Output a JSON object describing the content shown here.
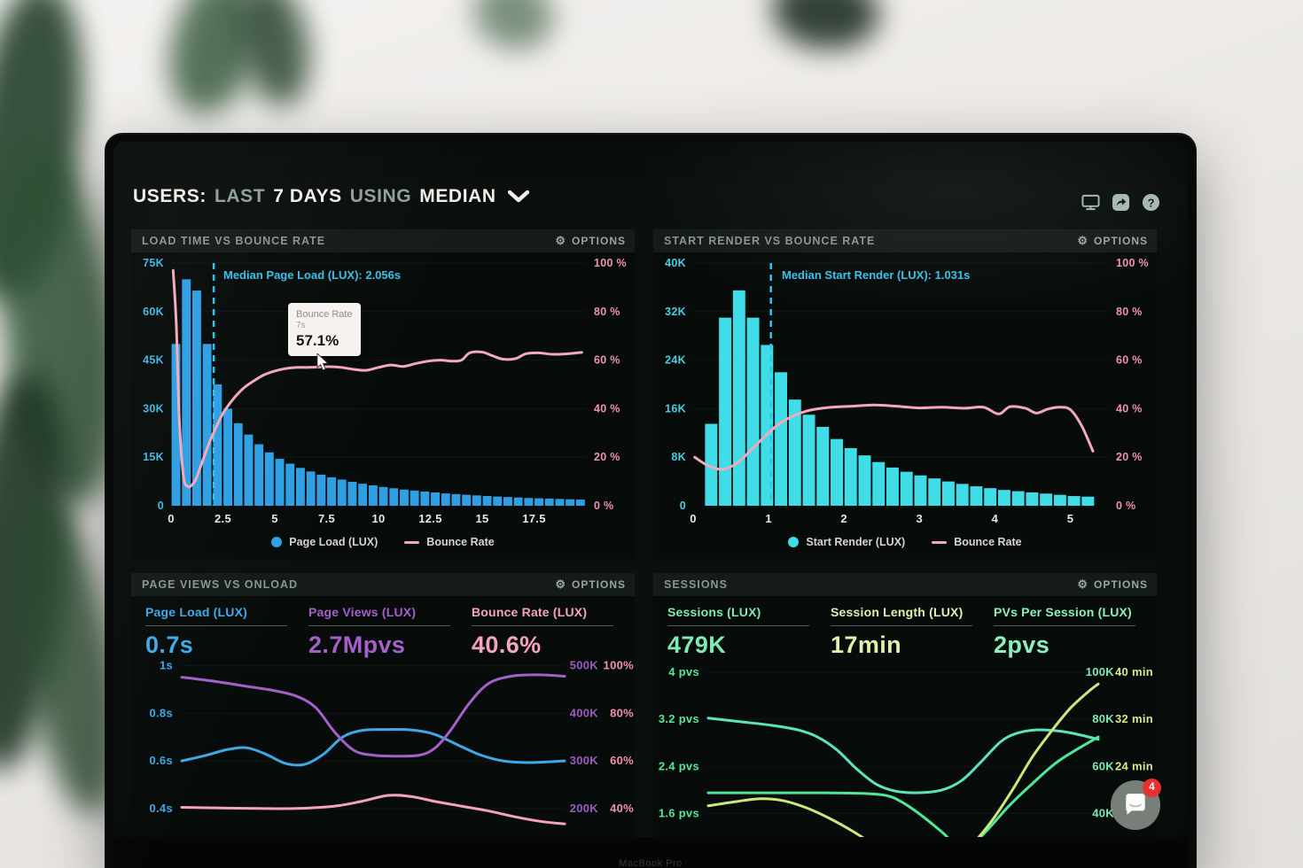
{
  "screen_header": {
    "segments": [
      {
        "text": "USERS:",
        "style": "bright"
      },
      {
        "text": "LAST",
        "style": "muted"
      },
      {
        "text": "7 DAYS",
        "style": "bright"
      },
      {
        "text": "USING",
        "style": "muted"
      },
      {
        "text": "MEDIAN",
        "style": "bright"
      }
    ],
    "icons": [
      "display-icon",
      "share-icon",
      "help-icon"
    ]
  },
  "chat_widget": {
    "badge_count": "4"
  },
  "bezel": {
    "text": "MacBook Pro"
  },
  "colors": {
    "page_load_blue": "#2f9fe4",
    "start_render_cyan": "#3fdde8",
    "bounce_pink": "#f3a9bc",
    "purple": "#a55fca",
    "mint": "#7deab6",
    "lime": "#d6e88c",
    "teal": "#5ce3c0",
    "green": "#4fe896"
  },
  "chart_data": [
    {
      "type": "bar",
      "title": "LOAD TIME VS BOUNCE RATE",
      "options_label": "OPTIONS",
      "x": {
        "max": 20,
        "ticks": [
          0,
          2.5,
          5,
          7.5,
          10,
          12.5,
          15,
          17.5
        ]
      },
      "y_left": {
        "max": 75,
        "color": "#41b7e8",
        "tick_vals": [
          75,
          60,
          45,
          30,
          15,
          0
        ],
        "ticks": [
          "75K",
          "60K",
          "45K",
          "30K",
          "15K",
          "0"
        ]
      },
      "y_right": {
        "max": 100,
        "color": "#f191ae",
        "tick_vals": [
          100,
          80,
          60,
          40,
          20,
          0
        ],
        "ticks": [
          "100 %",
          "80 %",
          "60 %",
          "40 %",
          "20 %",
          "0 %"
        ]
      },
      "bar_series": {
        "name": "Page Load (LUX)",
        "color": "#2f9fe4",
        "bin_start": 0,
        "bin_width": 0.5,
        "values_k": [
          50,
          70,
          66.5,
          50,
          37.5,
          30,
          25.5,
          22,
          19,
          16.5,
          14.5,
          13,
          11.7,
          10.6,
          9.6,
          8.8,
          8.1,
          7.4,
          6.8,
          6.3,
          5.8,
          5.4,
          5,
          4.7,
          4.4,
          4.1,
          3.8,
          3.6,
          3.4,
          3.2,
          3,
          2.85,
          2.7,
          2.55,
          2.4,
          2.3,
          2.2,
          2.1,
          2,
          1.9
        ]
      },
      "line_series": {
        "name": "Bounce Rate",
        "color": "#f3a9bc",
        "points": [
          [
            0.1,
            97
          ],
          [
            0.25,
            75
          ],
          [
            0.4,
            35
          ],
          [
            0.6,
            12
          ],
          [
            0.8,
            8
          ],
          [
            1.0,
            8.5
          ],
          [
            1.2,
            11
          ],
          [
            1.5,
            18
          ],
          [
            1.8,
            25
          ],
          [
            2.1,
            31
          ],
          [
            2.5,
            38
          ],
          [
            3.0,
            44
          ],
          [
            3.5,
            48.5
          ],
          [
            4.0,
            51.5
          ],
          [
            4.5,
            54
          ],
          [
            5.0,
            55.5
          ],
          [
            5.5,
            56.5
          ],
          [
            6.0,
            57
          ],
          [
            6.5,
            57
          ],
          [
            7.0,
            57.1
          ],
          [
            7.6,
            57.3
          ],
          [
            8.2,
            57
          ],
          [
            8.8,
            56.2
          ],
          [
            9.4,
            55.8
          ],
          [
            10.0,
            57
          ],
          [
            10.6,
            58
          ],
          [
            11.2,
            57.4
          ],
          [
            11.8,
            58.6
          ],
          [
            12.4,
            59.6
          ],
          [
            13.0,
            60
          ],
          [
            13.5,
            59.6
          ],
          [
            14.0,
            60
          ],
          [
            14.4,
            63
          ],
          [
            15.0,
            63.3
          ],
          [
            15.5,
            61.8
          ],
          [
            16.0,
            60.4
          ],
          [
            16.6,
            60.6
          ],
          [
            17.1,
            62.6
          ],
          [
            17.7,
            63
          ],
          [
            18.4,
            62.4
          ],
          [
            19.1,
            62.6
          ],
          [
            19.8,
            63.2
          ]
        ]
      },
      "annotation": {
        "label": "Median Page Load (LUX): 2.056s",
        "x": 2.056,
        "color": "#35c2ea"
      },
      "tooltip": {
        "label": "Bounce Rate",
        "x_label": "7s",
        "value": "57.1%"
      },
      "legend": [
        {
          "label": "Page Load (LUX)",
          "swatch": "dot",
          "color": "#2f9fe4"
        },
        {
          "label": "Bounce Rate",
          "swatch": "line",
          "color": "#f3a9bc"
        }
      ]
    },
    {
      "type": "bar",
      "title": "START RENDER VS BOUNCE RATE",
      "options_label": "OPTIONS",
      "x": {
        "max": 5.5,
        "ticks": [
          0,
          1,
          2,
          3,
          4,
          5
        ]
      },
      "y_left": {
        "max": 40,
        "color": "#45d0e4",
        "tick_vals": [
          40,
          32,
          24,
          16,
          8,
          0
        ],
        "ticks": [
          "40K",
          "32K",
          "24K",
          "16K",
          "8K",
          "0"
        ]
      },
      "y_right": {
        "max": 100,
        "color": "#f191ae",
        "tick_vals": [
          100,
          80,
          60,
          40,
          20,
          0
        ],
        "ticks": [
          "100 %",
          "80 %",
          "60 %",
          "40 %",
          "20 %",
          "0 %"
        ]
      },
      "bar_series": {
        "name": "Start Render (LUX)",
        "color": "#3fdde8",
        "bin_start": 0.15,
        "bin_width": 0.185,
        "values_k": [
          13.5,
          31,
          35.5,
          31,
          26.5,
          22,
          17.5,
          15,
          13,
          11,
          9.5,
          8.3,
          7.2,
          6.3,
          5.6,
          5,
          4.5,
          4,
          3.6,
          3.2,
          2.9,
          2.6,
          2.4,
          2.2,
          2,
          1.8,
          1.6,
          1.5
        ]
      },
      "line_series": {
        "name": "Bounce Rate",
        "color": "#f3a9bc",
        "points": [
          [
            0.02,
            20
          ],
          [
            0.2,
            16.5
          ],
          [
            0.4,
            15
          ],
          [
            0.6,
            18
          ],
          [
            0.8,
            24
          ],
          [
            1.0,
            30
          ],
          [
            1.2,
            35
          ],
          [
            1.5,
            39
          ],
          [
            1.8,
            40.5
          ],
          [
            2.1,
            41
          ],
          [
            2.4,
            41.5
          ],
          [
            2.7,
            41
          ],
          [
            3.0,
            40.3
          ],
          [
            3.3,
            40.6
          ],
          [
            3.6,
            40.2
          ],
          [
            3.85,
            40.6
          ],
          [
            4.05,
            37.8
          ],
          [
            4.2,
            40.8
          ],
          [
            4.4,
            40.2
          ],
          [
            4.55,
            38.2
          ],
          [
            4.7,
            39.8
          ],
          [
            4.85,
            40.6
          ],
          [
            5.0,
            39.6
          ],
          [
            5.15,
            33
          ],
          [
            5.3,
            22.5
          ]
        ]
      },
      "annotation": {
        "label": "Median Start Render (LUX): 1.031s",
        "x": 1.031,
        "color": "#35c2ea"
      },
      "legend": [
        {
          "label": "Start Render (LUX)",
          "swatch": "dot",
          "color": "#3fdde8"
        },
        {
          "label": "Bounce Rate",
          "swatch": "line",
          "color": "#f3a9bc"
        }
      ]
    },
    {
      "type": "line",
      "title": "PAGE VIEWS VS ONLOAD",
      "options_label": "OPTIONS",
      "stats": [
        {
          "label": "Page Load (LUX)",
          "value": "0.7s",
          "color": "#3fa9e8"
        },
        {
          "label": "Page Views (LUX)",
          "value": "2.7Mpvs",
          "color": "#a55fca"
        },
        {
          "label": "Bounce Rate (LUX)",
          "value": "40.6%",
          "color": "#f4a3bb"
        }
      ],
      "y_axis": {
        "min": 0.28,
        "max": 1.01
      },
      "left_color": "#3fa9e8",
      "right_colors": [
        "#9a5cc0",
        "#f290ae"
      ],
      "right_offsets": [
        38,
        78
      ],
      "ticks": [
        {
          "v": 1.0,
          "left": "1s",
          "right": [
            "500K",
            "100%"
          ]
        },
        {
          "v": 0.8,
          "left": "0.8s",
          "right": [
            "400K",
            "80%"
          ]
        },
        {
          "v": 0.6,
          "left": "0.6s",
          "right": [
            "300K",
            "60%"
          ]
        },
        {
          "v": 0.4,
          "left": "0.4s",
          "right": [
            "200K",
            "40%"
          ]
        }
      ],
      "series": [
        {
          "name": "Page Load",
          "color": "#3fa9e8",
          "scale": 1,
          "points": [
            [
              0,
              0.6
            ],
            [
              0.06,
              0.622
            ],
            [
              0.12,
              0.648
            ],
            [
              0.17,
              0.655
            ],
            [
              0.22,
              0.628
            ],
            [
              0.27,
              0.59
            ],
            [
              0.32,
              0.585
            ],
            [
              0.37,
              0.628
            ],
            [
              0.42,
              0.7
            ],
            [
              0.47,
              0.728
            ],
            [
              0.53,
              0.732
            ],
            [
              0.6,
              0.73
            ],
            [
              0.66,
              0.712
            ],
            [
              0.72,
              0.668
            ],
            [
              0.78,
              0.625
            ],
            [
              0.84,
              0.6
            ],
            [
              0.91,
              0.593
            ],
            [
              1,
              0.6
            ]
          ]
        },
        {
          "name": "Page Views",
          "color": "#a55fca",
          "scale": 500,
          "points": [
            [
              0,
              476
            ],
            [
              0.08,
              468
            ],
            [
              0.16,
              458
            ],
            [
              0.24,
              448
            ],
            [
              0.3,
              436
            ],
            [
              0.35,
              412
            ],
            [
              0.4,
              360
            ],
            [
              0.45,
              322
            ],
            [
              0.5,
              312
            ],
            [
              0.56,
              310
            ],
            [
              0.62,
              312
            ],
            [
              0.66,
              326
            ],
            [
              0.7,
              362
            ],
            [
              0.75,
              420
            ],
            [
              0.8,
              462
            ],
            [
              0.86,
              478
            ],
            [
              0.93,
              481
            ],
            [
              1,
              478
            ]
          ]
        },
        {
          "name": "Bounce Rate",
          "color": "#f4a3bb",
          "scale": 100,
          "points": [
            [
              0,
              40.5
            ],
            [
              0.1,
              40.2
            ],
            [
              0.2,
              40
            ],
            [
              0.3,
              40
            ],
            [
              0.4,
              41
            ],
            [
              0.47,
              43
            ],
            [
              0.54,
              45.5
            ],
            [
              0.6,
              45
            ],
            [
              0.66,
              43
            ],
            [
              0.73,
              41
            ],
            [
              0.8,
              39
            ],
            [
              0.87,
              36.5
            ],
            [
              0.94,
              34.5
            ],
            [
              1,
              33.5
            ]
          ]
        }
      ]
    },
    {
      "type": "line",
      "title": "SESSIONS",
      "options_label": "OPTIONS",
      "stats": [
        {
          "label": "Sessions (LUX)",
          "value": "479K",
          "color": "#7deab6"
        },
        {
          "label": "Session Length (LUX)",
          "value": "17min",
          "color": "#e2efad"
        },
        {
          "label": "PVs Per Session (LUX)",
          "value": "2pvs",
          "color": "#8af0bc"
        }
      ],
      "y_axis": {
        "min": 1.2,
        "max": 4.15
      },
      "left_color": "#55e896",
      "right_colors": [
        "#7deab6",
        "#d6e88c"
      ],
      "right_offsets": [
        18,
        62
      ],
      "ticks": [
        {
          "v": 4.0,
          "left": "4 pvs",
          "right": [
            "100K",
            "40 min"
          ]
        },
        {
          "v": 3.2,
          "left": "3.2 pvs",
          "right": [
            "80K",
            "32 min"
          ]
        },
        {
          "v": 2.4,
          "left": "2.4 pvs",
          "right": [
            "60K",
            "24 min"
          ]
        },
        {
          "v": 1.6,
          "left": "1.6 pvs",
          "right": [
            "40K",
            ""
          ]
        }
      ],
      "series": [
        {
          "name": "Sessions",
          "color": "#5ce3c0",
          "scale": 25,
          "points": [
            [
              0,
              80.5
            ],
            [
              0.08,
              79
            ],
            [
              0.16,
              77.5
            ],
            [
              0.23,
              75.5
            ],
            [
              0.28,
              72.5
            ],
            [
              0.33,
              67
            ],
            [
              0.38,
              59
            ],
            [
              0.43,
              52.5
            ],
            [
              0.48,
              49.5
            ],
            [
              0.54,
              48.8
            ],
            [
              0.6,
              50
            ],
            [
              0.65,
              54
            ],
            [
              0.7,
              62
            ],
            [
              0.75,
              70.5
            ],
            [
              0.79,
              74
            ],
            [
              0.84,
              75.5
            ],
            [
              0.9,
              75
            ],
            [
              0.95,
              73.5
            ],
            [
              1,
              71.5
            ]
          ]
        },
        {
          "name": "PVs Per Session",
          "color": "#4fe896",
          "scale": 1,
          "points": [
            [
              0,
              1.95
            ],
            [
              0.1,
              1.95
            ],
            [
              0.2,
              1.95
            ],
            [
              0.3,
              1.95
            ],
            [
              0.4,
              1.94
            ],
            [
              0.46,
              1.9
            ],
            [
              0.5,
              1.78
            ],
            [
              0.55,
              1.55
            ],
            [
              0.6,
              1.28
            ],
            [
              0.64,
              1.05
            ],
            [
              0.68,
              1.1
            ],
            [
              0.72,
              1.35
            ],
            [
              0.77,
              1.72
            ],
            [
              0.83,
              2.1
            ],
            [
              0.9,
              2.5
            ],
            [
              1,
              2.9
            ]
          ]
        },
        {
          "name": "Session Length",
          "color": "#cbe87c",
          "scale": 10,
          "points": [
            [
              0,
              17.3
            ],
            [
              0.07,
              18
            ],
            [
              0.13,
              18.5
            ],
            [
              0.19,
              18.2
            ],
            [
              0.25,
              17
            ],
            [
              0.31,
              15.2
            ],
            [
              0.37,
              13
            ],
            [
              0.43,
              10.5
            ],
            [
              0.5,
              8
            ],
            [
              0.57,
              7
            ],
            [
              0.63,
              8.5
            ],
            [
              0.68,
              11
            ],
            [
              0.73,
              15
            ],
            [
              0.78,
              20
            ],
            [
              0.83,
              25.5
            ],
            [
              0.88,
              30
            ],
            [
              0.93,
              34
            ],
            [
              0.98,
              37
            ],
            [
              1,
              38
            ]
          ]
        }
      ]
    }
  ]
}
